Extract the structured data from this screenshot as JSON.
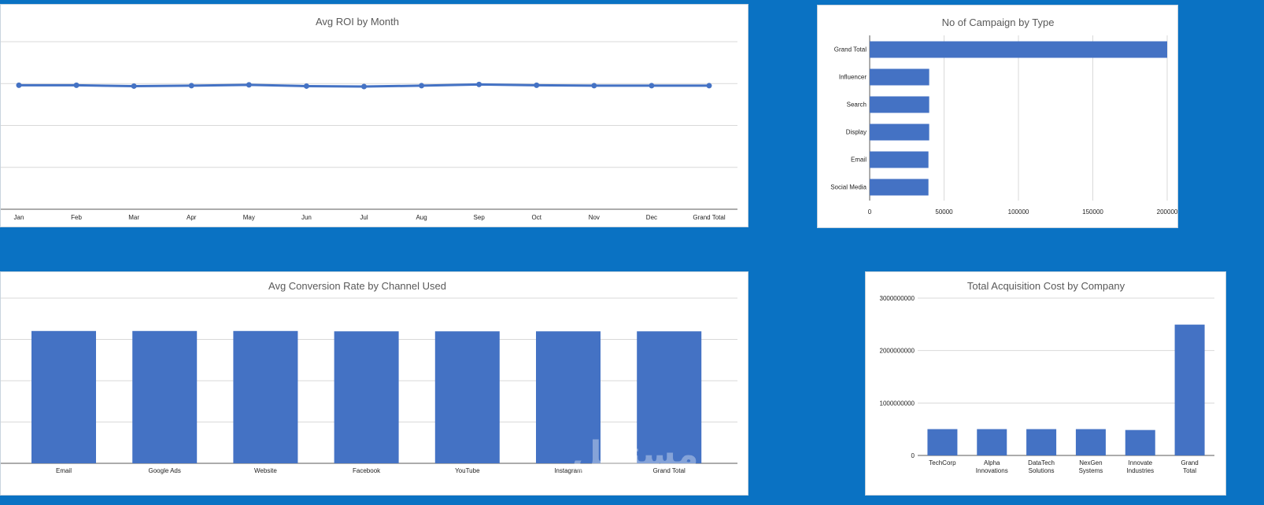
{
  "colors": {
    "background": "#0a72c3",
    "bar": "#4472c4",
    "grid": "#d9d9d9",
    "title": "#595959"
  },
  "watermark": {
    "arabic": "مستقل",
    "latin": "mostaql.com"
  },
  "chart_data": [
    {
      "id": "roi",
      "type": "line",
      "title": "Avg ROI by Month",
      "categories": [
        "Jan",
        "Feb",
        "Mar",
        "Apr",
        "May",
        "Jun",
        "Jul",
        "Aug",
        "Sep",
        "Oct",
        "Nov",
        "Dec",
        "Grand Total"
      ],
      "series": [
        {
          "values": [
            2.96,
            2.96,
            2.94,
            2.95,
            2.97,
            2.94,
            2.93,
            2.95,
            2.98,
            2.96,
            2.95,
            2.95,
            2.95
          ]
        }
      ],
      "ylim": [
        0,
        4
      ],
      "grid": true,
      "legend": "none"
    },
    {
      "id": "campaigns",
      "type": "bar",
      "orientation": "horizontal",
      "title": "No of Campaign by Type",
      "categories": [
        "Grand Total",
        "Influencer",
        "Search",
        "Display",
        "Email",
        "Social Media"
      ],
      "values": [
        200000,
        40000,
        40000,
        40000,
        39500,
        39500
      ],
      "xlim": [
        0,
        200000
      ],
      "xticks": [
        "0",
        "50000",
        "100000",
        "150000",
        "200000"
      ],
      "grid": true,
      "legend": "none"
    },
    {
      "id": "conversion",
      "type": "bar",
      "title": "Avg Conversion Rate by Channel Used",
      "categories": [
        "Email",
        "Google Ads",
        "Website",
        "Facebook",
        "YouTube",
        "Instagram",
        "Grand Total"
      ],
      "values": [
        0.0801,
        0.0801,
        0.0801,
        0.0799,
        0.0799,
        0.0799,
        0.0799
      ],
      "ylim": [
        0,
        0.1
      ],
      "grid": true,
      "legend": "none"
    },
    {
      "id": "acquisition",
      "type": "bar",
      "title": "Total Acquisition Cost by Company",
      "categories": [
        "TechCorp",
        "Alpha Innovations",
        "DataTech Solutions",
        "NexGen Systems",
        "Innovate Industries",
        "Grand Total"
      ],
      "values": [
        502000000,
        502000000,
        502000000,
        502000000,
        485000000,
        2495000000
      ],
      "ylim": [
        0,
        3000000000
      ],
      "yticks": [
        "0",
        "1000000000",
        "2000000000",
        "3000000000"
      ],
      "grid": true,
      "legend": "none"
    }
  ]
}
